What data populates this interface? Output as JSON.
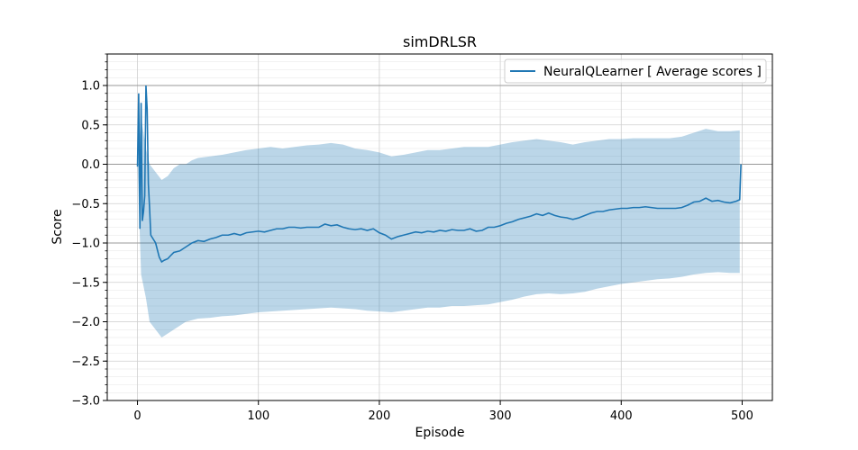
{
  "chart_data": {
    "type": "line",
    "title": "simDRLSR",
    "xlabel": "Episode",
    "ylabel": "Score",
    "xlim": [
      -25,
      525
    ],
    "ylim": [
      -3.0,
      1.4
    ],
    "x_ticks": [
      0,
      100,
      200,
      300,
      400,
      500
    ],
    "y_ticks": [
      -3.0,
      -2.5,
      -2.0,
      -1.5,
      -1.0,
      -0.5,
      0.0,
      0.5,
      1.0
    ],
    "y_tick_labels": [
      "−3.0",
      "−2.5",
      "−2.0",
      "−1.5",
      "−1.0",
      "−0.5",
      "0.0",
      "0.5",
      "1.0"
    ],
    "x_tick_labels": [
      "0",
      "100",
      "200",
      "300",
      "400",
      "500"
    ],
    "grid": true,
    "reference_lines": [
      1.0,
      0.0,
      -1.0
    ],
    "legend_position": "top-right",
    "line_color": "#1f77b4",
    "band_color": "#1f77b4",
    "series": [
      {
        "name": "NeuralQLearner [ Average scores ]",
        "points": [
          [
            0,
            -0.03
          ],
          [
            1,
            0.9
          ],
          [
            2,
            -0.82
          ],
          [
            3,
            0.78
          ],
          [
            4,
            -0.72
          ],
          [
            5,
            -0.6
          ],
          [
            6,
            -0.4
          ],
          [
            7,
            1.0
          ],
          [
            8,
            0.7
          ],
          [
            9,
            -0.25
          ],
          [
            10,
            -0.55
          ],
          [
            11,
            -0.9
          ],
          [
            13,
            -0.95
          ],
          [
            15,
            -1.0
          ],
          [
            18,
            -1.18
          ],
          [
            20,
            -1.24
          ],
          [
            22,
            -1.22
          ],
          [
            25,
            -1.2
          ],
          [
            28,
            -1.15
          ],
          [
            30,
            -1.12
          ],
          [
            35,
            -1.1
          ],
          [
            40,
            -1.05
          ],
          [
            45,
            -1.0
          ],
          [
            50,
            -0.97
          ],
          [
            55,
            -0.98
          ],
          [
            60,
            -0.95
          ],
          [
            65,
            -0.93
          ],
          [
            70,
            -0.9
          ],
          [
            75,
            -0.9
          ],
          [
            80,
            -0.88
          ],
          [
            85,
            -0.9
          ],
          [
            90,
            -0.87
          ],
          [
            95,
            -0.86
          ],
          [
            100,
            -0.85
          ],
          [
            105,
            -0.86
          ],
          [
            110,
            -0.84
          ],
          [
            115,
            -0.82
          ],
          [
            120,
            -0.82
          ],
          [
            125,
            -0.8
          ],
          [
            130,
            -0.8
          ],
          [
            135,
            -0.81
          ],
          [
            140,
            -0.8
          ],
          [
            145,
            -0.8
          ],
          [
            150,
            -0.8
          ],
          [
            155,
            -0.76
          ],
          [
            160,
            -0.78
          ],
          [
            165,
            -0.77
          ],
          [
            170,
            -0.8
          ],
          [
            175,
            -0.82
          ],
          [
            180,
            -0.83
          ],
          [
            185,
            -0.82
          ],
          [
            190,
            -0.84
          ],
          [
            195,
            -0.82
          ],
          [
            200,
            -0.87
          ],
          [
            205,
            -0.9
          ],
          [
            210,
            -0.95
          ],
          [
            215,
            -0.92
          ],
          [
            220,
            -0.9
          ],
          [
            225,
            -0.88
          ],
          [
            230,
            -0.86
          ],
          [
            235,
            -0.87
          ],
          [
            240,
            -0.85
          ],
          [
            245,
            -0.86
          ],
          [
            250,
            -0.84
          ],
          [
            255,
            -0.85
          ],
          [
            260,
            -0.83
          ],
          [
            265,
            -0.84
          ],
          [
            270,
            -0.84
          ],
          [
            275,
            -0.82
          ],
          [
            280,
            -0.85
          ],
          [
            285,
            -0.84
          ],
          [
            290,
            -0.8
          ],
          [
            295,
            -0.8
          ],
          [
            300,
            -0.78
          ],
          [
            305,
            -0.75
          ],
          [
            310,
            -0.73
          ],
          [
            315,
            -0.7
          ],
          [
            320,
            -0.68
          ],
          [
            325,
            -0.66
          ],
          [
            330,
            -0.63
          ],
          [
            335,
            -0.65
          ],
          [
            340,
            -0.62
          ],
          [
            345,
            -0.65
          ],
          [
            350,
            -0.67
          ],
          [
            355,
            -0.68
          ],
          [
            360,
            -0.7
          ],
          [
            365,
            -0.68
          ],
          [
            370,
            -0.65
          ],
          [
            375,
            -0.62
          ],
          [
            380,
            -0.6
          ],
          [
            385,
            -0.6
          ],
          [
            390,
            -0.58
          ],
          [
            395,
            -0.57
          ],
          [
            400,
            -0.56
          ],
          [
            405,
            -0.56
          ],
          [
            410,
            -0.55
          ],
          [
            415,
            -0.55
          ],
          [
            420,
            -0.54
          ],
          [
            425,
            -0.55
          ],
          [
            430,
            -0.56
          ],
          [
            435,
            -0.56
          ],
          [
            440,
            -0.56
          ],
          [
            445,
            -0.56
          ],
          [
            450,
            -0.55
          ],
          [
            455,
            -0.52
          ],
          [
            460,
            -0.48
          ],
          [
            465,
            -0.47
          ],
          [
            470,
            -0.43
          ],
          [
            475,
            -0.47
          ],
          [
            480,
            -0.46
          ],
          [
            485,
            -0.48
          ],
          [
            490,
            -0.49
          ],
          [
            495,
            -0.47
          ],
          [
            498,
            -0.45
          ],
          [
            499,
            0.0
          ]
        ],
        "band_upper": [
          [
            0,
            0.0
          ],
          [
            3,
            0.6
          ],
          [
            7,
            0.2
          ],
          [
            10,
            0.0
          ],
          [
            15,
            -0.1
          ],
          [
            20,
            -0.2
          ],
          [
            25,
            -0.15
          ],
          [
            30,
            -0.05
          ],
          [
            35,
            0.0
          ],
          [
            40,
            0.0
          ],
          [
            45,
            0.05
          ],
          [
            50,
            0.08
          ],
          [
            60,
            0.1
          ],
          [
            70,
            0.12
          ],
          [
            80,
            0.15
          ],
          [
            90,
            0.18
          ],
          [
            100,
            0.2
          ],
          [
            110,
            0.22
          ],
          [
            120,
            0.2
          ],
          [
            130,
            0.22
          ],
          [
            140,
            0.24
          ],
          [
            150,
            0.25
          ],
          [
            160,
            0.27
          ],
          [
            170,
            0.25
          ],
          [
            180,
            0.2
          ],
          [
            190,
            0.18
          ],
          [
            200,
            0.15
          ],
          [
            210,
            0.1
          ],
          [
            220,
            0.12
          ],
          [
            230,
            0.15
          ],
          [
            240,
            0.18
          ],
          [
            250,
            0.18
          ],
          [
            260,
            0.2
          ],
          [
            270,
            0.22
          ],
          [
            280,
            0.22
          ],
          [
            290,
            0.22
          ],
          [
            300,
            0.25
          ],
          [
            310,
            0.28
          ],
          [
            320,
            0.3
          ],
          [
            330,
            0.32
          ],
          [
            340,
            0.3
          ],
          [
            350,
            0.28
          ],
          [
            360,
            0.25
          ],
          [
            370,
            0.28
          ],
          [
            380,
            0.3
          ],
          [
            390,
            0.32
          ],
          [
            400,
            0.32
          ],
          [
            410,
            0.33
          ],
          [
            420,
            0.33
          ],
          [
            430,
            0.33
          ],
          [
            440,
            0.33
          ],
          [
            450,
            0.35
          ],
          [
            460,
            0.4
          ],
          [
            470,
            0.45
          ],
          [
            480,
            0.42
          ],
          [
            490,
            0.42
          ],
          [
            498,
            0.43
          ]
        ],
        "band_lower": [
          [
            0,
            0.0
          ],
          [
            3,
            -1.4
          ],
          [
            7,
            -1.7
          ],
          [
            10,
            -2.0
          ],
          [
            15,
            -2.1
          ],
          [
            20,
            -2.2
          ],
          [
            25,
            -2.15
          ],
          [
            30,
            -2.1
          ],
          [
            35,
            -2.05
          ],
          [
            40,
            -2.0
          ],
          [
            45,
            -1.98
          ],
          [
            50,
            -1.96
          ],
          [
            60,
            -1.95
          ],
          [
            70,
            -1.93
          ],
          [
            80,
            -1.92
          ],
          [
            90,
            -1.9
          ],
          [
            100,
            -1.88
          ],
          [
            110,
            -1.87
          ],
          [
            120,
            -1.86
          ],
          [
            130,
            -1.85
          ],
          [
            140,
            -1.84
          ],
          [
            150,
            -1.83
          ],
          [
            160,
            -1.82
          ],
          [
            170,
            -1.83
          ],
          [
            180,
            -1.84
          ],
          [
            190,
            -1.86
          ],
          [
            200,
            -1.87
          ],
          [
            210,
            -1.88
          ],
          [
            220,
            -1.86
          ],
          [
            230,
            -1.84
          ],
          [
            240,
            -1.82
          ],
          [
            250,
            -1.82
          ],
          [
            260,
            -1.8
          ],
          [
            270,
            -1.8
          ],
          [
            280,
            -1.79
          ],
          [
            290,
            -1.78
          ],
          [
            300,
            -1.75
          ],
          [
            310,
            -1.72
          ],
          [
            320,
            -1.68
          ],
          [
            330,
            -1.65
          ],
          [
            340,
            -1.64
          ],
          [
            350,
            -1.65
          ],
          [
            360,
            -1.64
          ],
          [
            370,
            -1.62
          ],
          [
            380,
            -1.58
          ],
          [
            390,
            -1.55
          ],
          [
            400,
            -1.52
          ],
          [
            410,
            -1.5
          ],
          [
            420,
            -1.48
          ],
          [
            430,
            -1.46
          ],
          [
            440,
            -1.45
          ],
          [
            450,
            -1.43
          ],
          [
            460,
            -1.4
          ],
          [
            470,
            -1.38
          ],
          [
            480,
            -1.37
          ],
          [
            490,
            -1.38
          ],
          [
            498,
            -1.38
          ]
        ]
      }
    ]
  }
}
